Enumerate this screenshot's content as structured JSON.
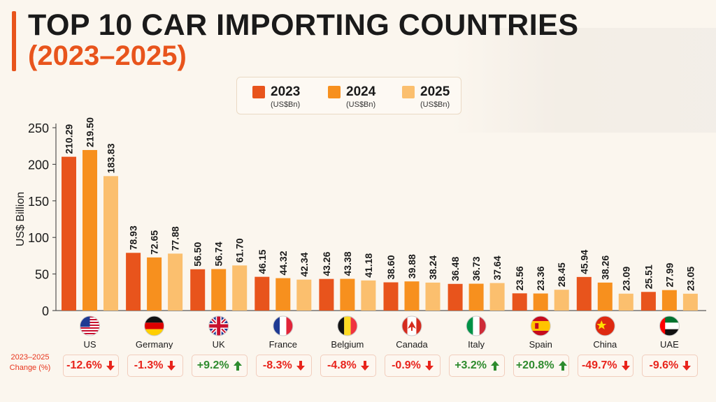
{
  "chart_data": {
    "type": "bar",
    "title": "TOP 10 CAR IMPORTING COUNTRIES",
    "subtitle": "(2023–2025)",
    "ylabel": "US$ Billion",
    "ylim": [
      0,
      250
    ],
    "yticks": [
      0,
      50,
      100,
      150,
      200,
      250
    ],
    "categories": [
      "US",
      "Germany",
      "UK",
      "France",
      "Belgium",
      "Canada",
      "Italy",
      "Spain",
      "China",
      "UAE"
    ],
    "series": [
      {
        "name": "2023",
        "unit": "(US$Bn)",
        "color": "#e8541c",
        "values": [
          210.29,
          78.93,
          56.5,
          46.15,
          43.26,
          38.6,
          36.48,
          23.56,
          45.94,
          25.51
        ]
      },
      {
        "name": "2024",
        "unit": "(US$Bn)",
        "color": "#f7901e",
        "values": [
          219.5,
          72.65,
          56.74,
          44.32,
          43.38,
          39.88,
          36.73,
          23.36,
          38.26,
          27.99
        ]
      },
      {
        "name": "2025",
        "unit": "(US$Bn)",
        "color": "#fbbf6e",
        "values": [
          183.83,
          77.88,
          61.7,
          42.34,
          41.18,
          38.24,
          37.64,
          28.45,
          23.09,
          23.05
        ]
      }
    ],
    "data_labels": [
      [
        "210.29",
        "78.93",
        "56.50",
        "46.15",
        "43.26",
        "38.60",
        "36.48",
        "23.56",
        "45.94",
        "25.51"
      ],
      [
        "219.50",
        "72.65",
        "56.74",
        "44.32",
        "43.38",
        "39.88",
        "36.73",
        "23.36",
        "38.26",
        "27.99"
      ],
      [
        "183.83",
        "77.88",
        "61.70",
        "42.34",
        "41.18",
        "38.24",
        "37.64",
        "28.45",
        "23.09",
        "23.05"
      ]
    ],
    "change_label": "2023–2025 Change (%)",
    "change": [
      "-12.6%",
      "-1.3%",
      "+9.2%",
      "-8.3%",
      "-4.8%",
      "-0.9%",
      "+3.2%",
      "+20.8%",
      "-49.7%",
      "-9.6%"
    ],
    "change_direction": [
      "down",
      "down",
      "up",
      "down",
      "down",
      "down",
      "up",
      "up",
      "down",
      "down"
    ],
    "colors": {
      "up": "#2e8b2e",
      "down": "#e8241c",
      "axis": "#333333"
    },
    "flag_icons": [
      "us-flag-icon",
      "germany-flag-icon",
      "uk-flag-icon",
      "france-flag-icon",
      "belgium-flag-icon",
      "canada-flag-icon",
      "italy-flag-icon",
      "spain-flag-icon",
      "china-flag-icon",
      "uae-flag-icon"
    ],
    "grid": false,
    "legend_position": "top-center"
  }
}
